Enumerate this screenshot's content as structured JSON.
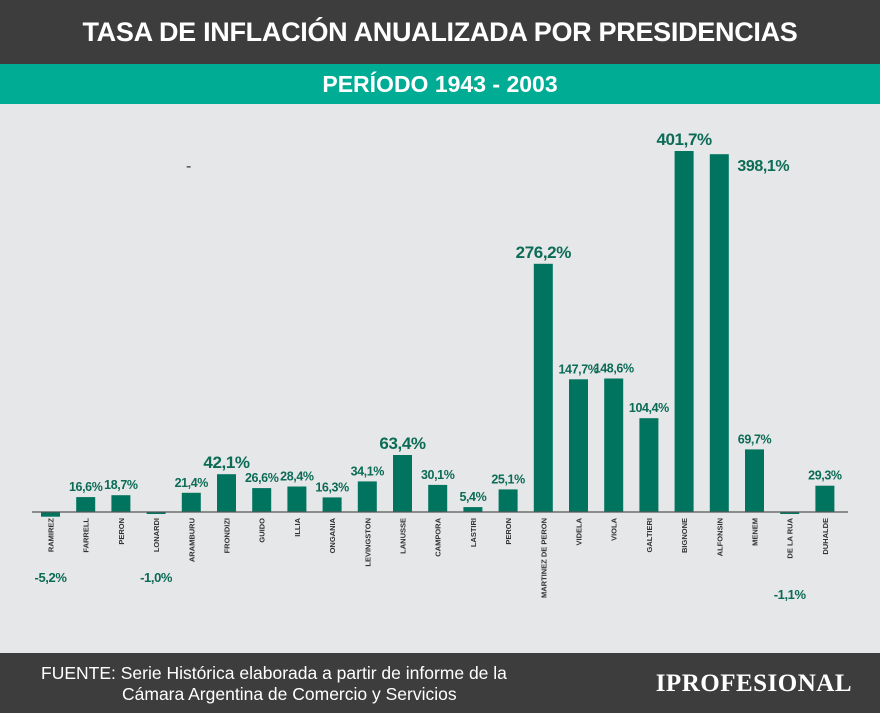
{
  "header": {
    "title": "TASA DE INFLACIÓN ANUALIZADA POR PRESIDENCIAS",
    "subtitle": "PERÍODO 1943 - 2003"
  },
  "stray_mark": "-",
  "chart_data": {
    "type": "bar",
    "title": "TASA DE INFLACIÓN ANUALIZADA POR PRESIDENCIAS",
    "subtitle": "PERÍODO 1943 - 2003",
    "xlabel": "",
    "ylabel": "",
    "grid": false,
    "ylim": [
      -10,
      410
    ],
    "colors": {
      "bar": "#00745f",
      "label": "#0b6b56",
      "axis": "#555555",
      "category": "#333333"
    },
    "categories": [
      "RAMIREZ",
      "FARRELL",
      "PERON",
      "LONARDI",
      "ARAMBURU",
      "FRONDIZI",
      "GUIDO",
      "ILLIA",
      "ONGANIA",
      "LEVINGSTON",
      "LANUSSE",
      "CAMPORA",
      "LASTIRI",
      "PERON",
      "MARTINEZ DE PERON",
      "VIDELA",
      "VIOLA",
      "GALTIERI",
      "BIGNONE",
      "ALFONSIN",
      "MENEM",
      "DE LA RUA",
      "DUHALDE"
    ],
    "values": [
      -5.2,
      16.6,
      18.7,
      -1.0,
      21.4,
      42.1,
      26.6,
      28.4,
      16.3,
      34.1,
      63.4,
      30.1,
      5.4,
      25.1,
      276.2,
      147.7,
      148.6,
      104.4,
      401.7,
      398.1,
      69.7,
      -1.1,
      29.3
    ],
    "labels": [
      "-5,2%",
      "16,6%",
      "18,7%",
      "-1,0%",
      "21,4%",
      "42,1%",
      "26,6%",
      "28,4%",
      "16,3%",
      "34,1%",
      "63,4%",
      "30,1%",
      "5,4%",
      "25,1%",
      "276,2%",
      "147,7%",
      "148,6%",
      "104,4%",
      "401,7%",
      "398,1%",
      "69,7%",
      "-1,1%",
      "29,3%"
    ]
  },
  "footer": {
    "source_line1": "FUENTE: Serie Histórica elaborada a partir de informe de la",
    "source_line2": "Cámara Argentina de Comercio y Servicios",
    "logo": "IPROFESIONAL"
  }
}
